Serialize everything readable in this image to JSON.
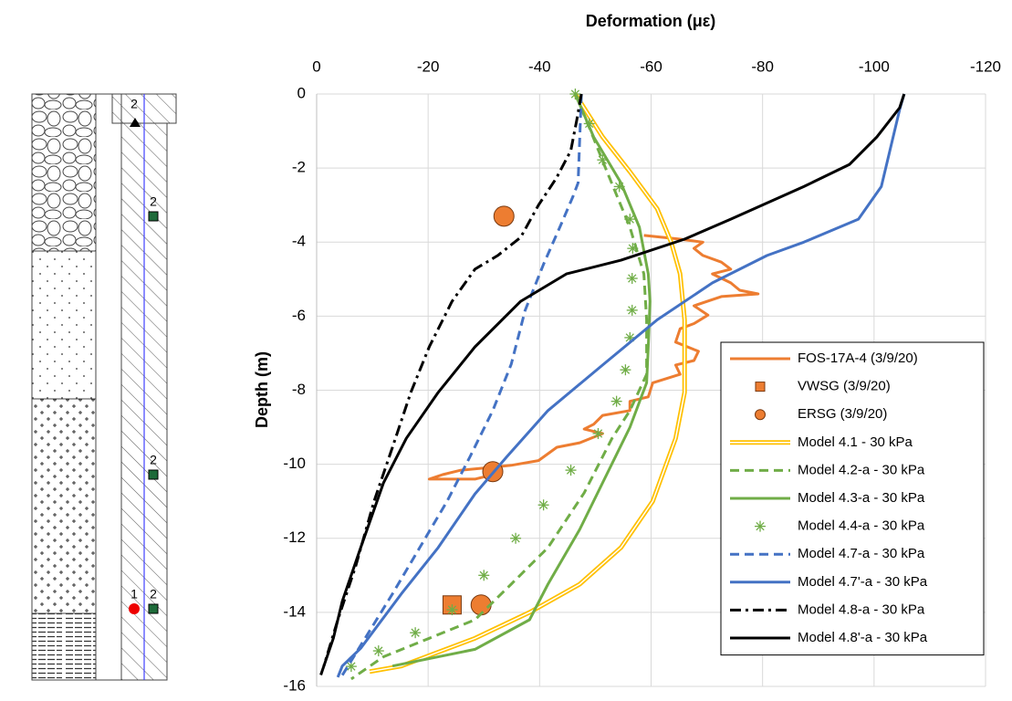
{
  "chart_data": {
    "type": "line",
    "x_label": "Deformation (με)",
    "y_label": "Depth (m)",
    "xlim": [
      0,
      -120
    ],
    "xticks": [
      0,
      -20,
      -40,
      -60,
      -80,
      -100,
      -120
    ],
    "ylim": [
      -16,
      0
    ],
    "yticks": [
      0,
      -2,
      -4,
      -6,
      -8,
      -10,
      -12,
      -14,
      -16
    ],
    "grid": true,
    "legend": "lower right",
    "series": [
      {
        "name": "FOS-17A-4 (3/9/20)",
        "color": "#ed7d31",
        "line": "solid",
        "marker": "none",
        "x": [
          -58.7,
          -65.2,
          -69.3,
          -67.7,
          -69.3,
          -72.6,
          -74.3,
          -71,
          -74.3,
          -75.9,
          -79.2,
          -72.6,
          -67.7,
          -70.2,
          -67.7,
          -65.2,
          -64.4,
          -68.5,
          -67.7,
          -64.4,
          -65.2,
          -60.3,
          -59.5,
          -56.2,
          -56.2,
          -51.3,
          -49.7,
          -48,
          -51.3,
          -47.2,
          -43.1,
          -39.8,
          -34.9,
          -31.6,
          -25.9,
          -22.6,
          -20.2,
          -28.4,
          -31.6
        ],
        "y": [
          -3.82,
          -3.92,
          -4,
          -4.17,
          -4.36,
          -4.54,
          -4.73,
          -4.86,
          -5.1,
          -5.3,
          -5.4,
          -5.47,
          -5.72,
          -5.97,
          -6.2,
          -6.34,
          -6.7,
          -6.95,
          -7.2,
          -7.32,
          -7.57,
          -7.8,
          -8.18,
          -8.3,
          -8.55,
          -8.68,
          -8.92,
          -9.05,
          -9.17,
          -9.42,
          -9.54,
          -9.9,
          -10.03,
          -10.08,
          -10.16,
          -10.28,
          -10.4,
          -10.4,
          -10.28
        ]
      },
      {
        "name": "VWSG (3/9/20)",
        "color": "#ed7d31",
        "line": "none",
        "marker": "square",
        "x": [
          -24.3
        ],
        "y": [
          -13.8
        ]
      },
      {
        "name": "ERSG (3/9/20)",
        "color": "#ed7d31",
        "line": "none",
        "marker": "circle",
        "x": [
          -33.6,
          -31.6,
          -29.5
        ],
        "y": [
          -3.3,
          -10.2,
          -13.8
        ]
      },
      {
        "name": "Model 4.1 - 30 kPa",
        "color": "#ffc000",
        "line": "double",
        "marker": "none",
        "x": [
          -46.4,
          -51.3,
          -56.2,
          -61.1,
          -63.6,
          -65.2,
          -66,
          -66,
          -66,
          -64.4,
          -60.3,
          -54.6,
          -47.2,
          -38.2,
          -28.4,
          -15.2,
          -9.5
        ],
        "y": [
          0,
          -1.16,
          -2.1,
          -3.1,
          -4,
          -4.86,
          -6.1,
          -7.32,
          -8.06,
          -9.3,
          -11,
          -12.25,
          -13.24,
          -14,
          -14.7,
          -15.45,
          -15.6
        ]
      },
      {
        "name": "Model 4.2-a - 30 kPa",
        "color": "#70ad47",
        "line": "dashed",
        "marker": "none",
        "x": [
          -46.4,
          -48.9,
          -52.1,
          -56.2,
          -58.7,
          -59.2,
          -59.2,
          -56.2,
          -53,
          -48,
          -41.5,
          -34.9,
          -28.4,
          -20.2,
          -12,
          -6.2
        ],
        "y": [
          0,
          -0.9,
          -2.1,
          -3.6,
          -4.86,
          -6.1,
          -7.57,
          -8.55,
          -9.3,
          -10.77,
          -12.25,
          -13.24,
          -14.2,
          -14.7,
          -15.2,
          -15.8
        ]
      },
      {
        "name": "Model 4.3-a - 30 kPa",
        "color": "#70ad47",
        "line": "solid",
        "marker": "none",
        "x": [
          -46.4,
          -49.7,
          -54.6,
          -57.9,
          -59.5,
          -59.8,
          -59.5,
          -59.2,
          -56.2,
          -51.3,
          -47.2,
          -41.5,
          -38.2,
          -28.4,
          -13.6
        ],
        "y": [
          0,
          -1.16,
          -2.4,
          -3.6,
          -4.86,
          -5.6,
          -6.83,
          -7.8,
          -9,
          -10.5,
          -11.76,
          -13.24,
          -14.2,
          -15,
          -15.45
        ]
      },
      {
        "name": "Model 4.4-a - 30 kPa",
        "color": "#70ad47",
        "line": "none",
        "marker": "asterisk",
        "x": [
          -46.4,
          -48.9,
          -51.3,
          -54.3,
          -56.2,
          -56.7,
          -56.6,
          -56.6,
          -56.2,
          -55.4,
          -53.8,
          -50.5,
          -45.6,
          -40.7,
          -35.7,
          -30,
          -24.3,
          -17.7,
          -11.1,
          -6.2
        ],
        "y": [
          0,
          -0.8,
          -1.78,
          -2.5,
          -3.38,
          -4.17,
          -4.98,
          -5.84,
          -6.58,
          -7.45,
          -8.3,
          -9.17,
          -10.16,
          -11.1,
          -12,
          -13,
          -13.93,
          -14.55,
          -15.04,
          -15.46
        ]
      },
      {
        "name": "Model 4.7-a - 30 kPa",
        "color": "#4472c4",
        "line": "dashed",
        "marker": "none",
        "x": [
          -47.5,
          -46.9,
          -46,
          -43.9,
          -40.7,
          -37.4,
          -34.9,
          -31.6,
          -27.5,
          -23.4,
          -18.5,
          -13.6,
          -8.7,
          -4.6
        ],
        "y": [
          0,
          -2.4,
          -2.76,
          -3.5,
          -4.6,
          -5.84,
          -7.3,
          -8.55,
          -9.8,
          -11,
          -12.25,
          -13.5,
          -14.7,
          -15.7
        ]
      },
      {
        "name": "Model 4.7'-a - 30 kPa",
        "color": "#4472c4",
        "line": "solid",
        "marker": "none",
        "x": [
          -105.4,
          -104.6,
          -101.3,
          -97.2,
          -87.4,
          -80.8,
          -71,
          -61.1,
          -51.3,
          -41.5,
          -34.1,
          -28.4,
          -21.8,
          -15.2,
          -7.9,
          -4.6,
          -3.8
        ],
        "y": [
          0,
          -0.42,
          -2.5,
          -3.38,
          -4,
          -4.36,
          -5.1,
          -6.1,
          -7.32,
          -8.55,
          -9.8,
          -10.8,
          -12.25,
          -13.5,
          -14.97,
          -15.45,
          -15.75
        ]
      },
      {
        "name": "Model 4.8-a - 30 kPa",
        "color": "#000000",
        "line": "dash-dot",
        "marker": "none",
        "x": [
          -47.5,
          -46.7,
          -45.6,
          -43,
          -39.8,
          -36.6,
          -32.5,
          -28.4,
          -24.3,
          -20.2,
          -16.9,
          -13.6,
          -10.3,
          -7,
          -3.8,
          -1.3,
          -0.5
        ],
        "y": [
          0,
          -0.67,
          -1.53,
          -2.27,
          -3,
          -3.87,
          -4.36,
          -4.73,
          -5.6,
          -6.83,
          -8.06,
          -9.54,
          -11,
          -12.75,
          -14.2,
          -15.45,
          -15.8
        ]
      },
      {
        "name": "Model 4.8'-a - 30 kPa",
        "color": "#000000",
        "line": "solid",
        "marker": "none",
        "x": [
          -105.4,
          -104.6,
          -100.5,
          -95.6,
          -87.4,
          -74.3,
          -66,
          -54.6,
          -44.8,
          -36.6,
          -28.4,
          -21.8,
          -16.1,
          -12,
          -7.9,
          -4.6,
          -3,
          -1.3
        ],
        "y": [
          0,
          -0.37,
          -1.16,
          -1.9,
          -2.5,
          -3.38,
          -3.92,
          -4.49,
          -4.86,
          -5.6,
          -6.83,
          -8.06,
          -9.3,
          -10.5,
          -12.25,
          -13.7,
          -14.7,
          -15.45
        ]
      }
    ]
  },
  "borehole": {
    "sensor_labels": [
      "2",
      "2",
      "2",
      "1",
      "2"
    ]
  }
}
